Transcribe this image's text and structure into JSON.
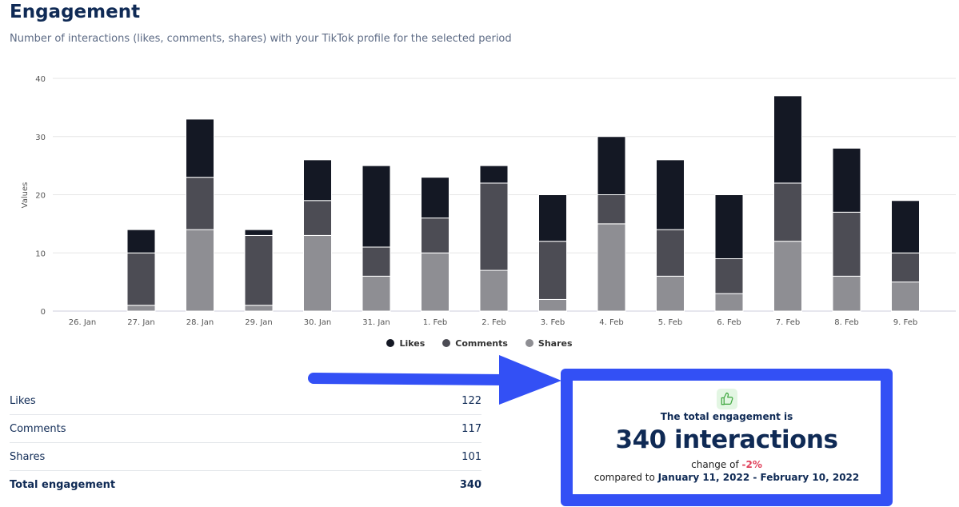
{
  "header": {
    "title": "Engagement",
    "subtitle": "Number of interactions (likes, comments, shares) with your TikTok profile for the selected period"
  },
  "chart_data": {
    "type": "bar",
    "stacked": true,
    "ylabel": "Values",
    "ylim": [
      0,
      40
    ],
    "yticks": [
      0,
      10,
      20,
      30,
      40
    ],
    "grid": true,
    "legend_placement": "bottom",
    "categories": [
      "26. Jan",
      "27. Jan",
      "28. Jan",
      "29. Jan",
      "30. Jan",
      "31. Jan",
      "1. Feb",
      "2. Feb",
      "3. Feb",
      "4. Feb",
      "5. Feb",
      "6. Feb",
      "7. Feb",
      "8. Feb",
      "9. Feb"
    ],
    "series": [
      {
        "name": "Shares",
        "color": "#8e8e93",
        "values": [
          0,
          1,
          14,
          1,
          13,
          6,
          10,
          7,
          2,
          15,
          6,
          3,
          12,
          6,
          5
        ]
      },
      {
        "name": "Comments",
        "color": "#4c4c54",
        "values": [
          0,
          9,
          9,
          12,
          6,
          5,
          6,
          15,
          10,
          5,
          8,
          6,
          10,
          11,
          5
        ]
      },
      {
        "name": "Likes",
        "color": "#141824",
        "values": [
          0,
          4,
          10,
          1,
          7,
          14,
          7,
          3,
          8,
          10,
          12,
          11,
          15,
          11,
          9
        ]
      }
    ],
    "legend": [
      "Likes",
      "Comments",
      "Shares"
    ]
  },
  "stats": [
    {
      "label": "Likes",
      "value": "122"
    },
    {
      "label": "Comments",
      "value": "117"
    },
    {
      "label": "Shares",
      "value": "101"
    },
    {
      "label": "Total engagement",
      "value": "340"
    }
  ],
  "summary": {
    "icon": "thumbs-up-icon",
    "heading": "The total engagement is",
    "total": "340 interactions",
    "change_prefix": "change of ",
    "change": "-2%",
    "compared_prefix": "compared to ",
    "compared_range": "January 11, 2022 - February 10, 2022"
  },
  "colors": {
    "highlight": "#3350f5",
    "negative": "#e0405a",
    "title": "#0f2a55"
  }
}
